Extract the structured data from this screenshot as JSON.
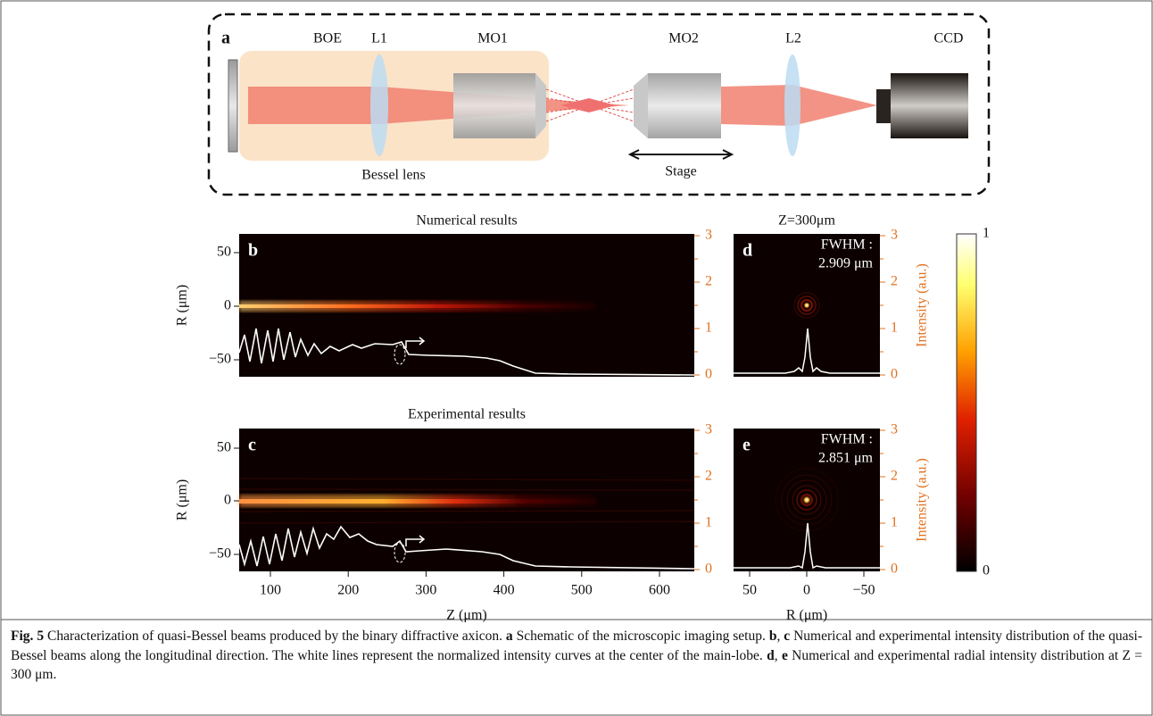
{
  "schematic": {
    "panel_label": "a",
    "components": [
      "BOE",
      "L1",
      "MO1",
      "MO2",
      "L2",
      "CCD"
    ],
    "group_label": "Bessel lens",
    "stage_label": "Stage"
  },
  "longitudinal": {
    "titles": [
      "Numerical results",
      "Experimental results"
    ],
    "panel_labels": [
      "b",
      "c"
    ],
    "ylabel": "R (μm)",
    "yticks": [
      "50",
      "0",
      "−50"
    ],
    "right_ticks": [
      "3",
      "2",
      "1",
      "0"
    ],
    "xlabel": "Z (μm)",
    "xticks": [
      "100",
      "200",
      "300",
      "400",
      "500",
      "600"
    ]
  },
  "radial": {
    "title": "Z=300μm",
    "panel_labels": [
      "d",
      "e"
    ],
    "fwhm_label": "FWHM :",
    "fwhm_values": [
      "2.909 μm",
      "2.851 μm"
    ],
    "ylabel": "Intensity (a.u.)",
    "yticks": [
      "3",
      "2",
      "1",
      "0"
    ],
    "xlabel": "R (μm)",
    "xticks": [
      "50",
      "0",
      "−50"
    ]
  },
  "colorbar": {
    "ticks": [
      "1",
      "0"
    ]
  },
  "caption": [
    "Fig. 5",
    " Characterization of quasi-Bessel beams produced by the binary diffractive axicon. ",
    "a",
    " Schematic of the microscopic imaging setup. ",
    "b",
    ", ",
    "c",
    " Numerical and experimental intensity distribution of the quasi-Bessel beams along the longitudinal direction. The white lines represent the normalized intensity curves at the center of the main-lobe. ",
    "d",
    ", ",
    "e",
    " Numerical and experimental radial intensity distribution at Z = 300 μm."
  ]
}
